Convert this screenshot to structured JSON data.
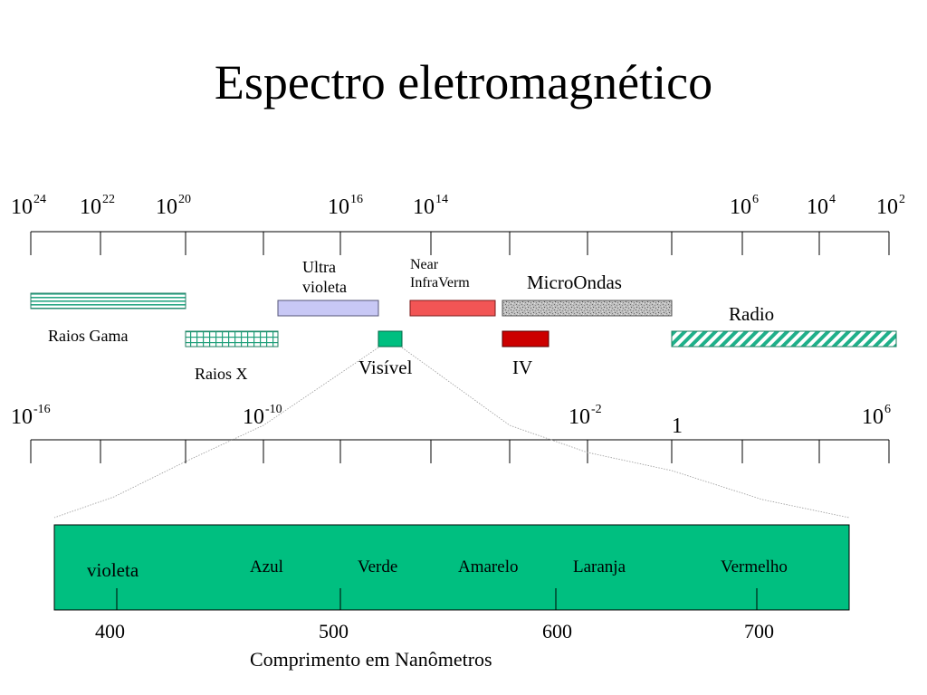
{
  "title": "Espectro eletromagnético",
  "frequency_axis": {
    "ticks": [
      {
        "base": "10",
        "exp": "24"
      },
      {
        "base": "10",
        "exp": "22"
      },
      {
        "base": "10",
        "exp": "20"
      },
      {
        "base": "10",
        "exp": "16"
      },
      {
        "base": "10",
        "exp": "14"
      },
      {
        "base": "10",
        "exp": "6"
      },
      {
        "base": "10",
        "exp": "4"
      },
      {
        "base": "10",
        "exp": "2"
      }
    ]
  },
  "bands": {
    "gamma": "Raios Gama",
    "xray": "Raios X",
    "uv": "Ultra violeta",
    "near_ir": "Near InfraVerm",
    "microwaves": "MicroOndas",
    "radio": "Radio",
    "visible": "Visível",
    "ir": "IV"
  },
  "wavelength_axis": {
    "ticks": [
      {
        "base": "10",
        "exp": "-16"
      },
      {
        "base": "10",
        "exp": "-10"
      },
      {
        "base": "10",
        "exp": "-2"
      },
      {
        "base": "10",
        "exp": "6"
      }
    ],
    "one_label": "1"
  },
  "visible_spectrum": {
    "colors": [
      "violeta",
      "Azul",
      "Verde",
      "Amarelo",
      "Laranja",
      "Vermelho"
    ],
    "ticks": [
      "400",
      "500",
      "600",
      "700"
    ],
    "axis_label": "Comprimento em Nanômetros",
    "fill_color": "#00bf80"
  },
  "colors": {
    "gamma_stripes": "#2aa885",
    "xray_grid": "#1f9f7a",
    "uv": "#c8c8f5",
    "near_ir": "#f25555",
    "ir": "#cc0000",
    "visible_box": "#00bf80",
    "radio_hatch": "#1fb08a"
  }
}
